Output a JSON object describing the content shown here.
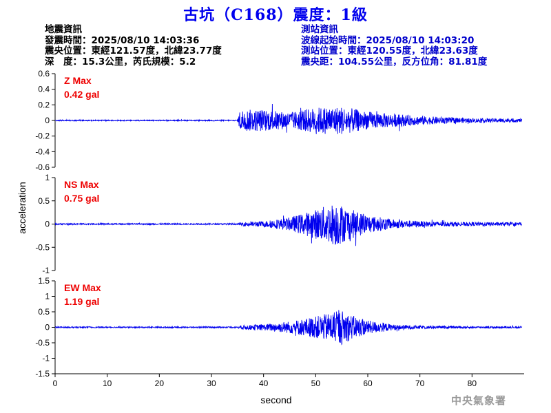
{
  "title": "古坑（C168）震度：1級",
  "quake_info": {
    "heading": "地震資訊",
    "origin_time": "發震時間：2025/08/10 14:03:36",
    "epicenter": "震央位置：東經121.57度，北緯23.77度",
    "depth_magnitude": "深　度：15.3公里，芮氏規模：5.2"
  },
  "station_info": {
    "heading": "測站資訊",
    "wave_onset": "波線起始時間：2025/08/10 14:03:20",
    "station_location": "測站位置：東經120.55度，北緯23.63度",
    "distance_azimuth": "震央距：104.55公里，反方位角：81.81度"
  },
  "logo_text": "中央氣象署",
  "colors": {
    "trace": "#0000ee",
    "max_label": "#ee0000",
    "title": "#0000ee",
    "station_info": "#0000cc"
  },
  "chart_data": {
    "type": "line",
    "xlabel": "second",
    "ylabel": "acceleration",
    "xlim": [
      0,
      90
    ],
    "x_ticks": [
      0,
      10,
      20,
      30,
      40,
      50,
      60,
      70,
      80
    ],
    "panels": [
      {
        "component": "Z",
        "max_label": "Z Max",
        "max_value": "0.42 gal",
        "ylim": [
          -0.6,
          0.6
        ],
        "y_ticks": [
          0.6,
          0.4,
          0.2,
          0,
          -0.2,
          -0.4,
          -0.6
        ],
        "y_tick_labels": [
          "0.6",
          "0.4",
          "0.2",
          "0",
          "-0.2",
          "-0.4",
          "-0.6"
        ],
        "envelope": [
          [
            0,
            0.01
          ],
          [
            35,
            0.01
          ],
          [
            35.5,
            0.2
          ],
          [
            40,
            0.2
          ],
          [
            45,
            0.15
          ],
          [
            50,
            0.24
          ],
          [
            55,
            0.26
          ],
          [
            60,
            0.16
          ],
          [
            65,
            0.12
          ],
          [
            70,
            0.08
          ],
          [
            80,
            0.04
          ],
          [
            90,
            0.03
          ]
        ]
      },
      {
        "component": "NS",
        "max_label": "NS Max",
        "max_value": "0.75 gal",
        "ylim": [
          -1,
          1
        ],
        "y_ticks": [
          1,
          0.5,
          0,
          -0.5,
          -1
        ],
        "y_tick_labels": [
          "1",
          "0.5",
          "0",
          "-0.5",
          "-1"
        ],
        "envelope": [
          [
            0,
            0.02
          ],
          [
            35,
            0.02
          ],
          [
            36,
            0.06
          ],
          [
            40,
            0.09
          ],
          [
            45,
            0.2
          ],
          [
            50,
            0.45
          ],
          [
            54,
            0.68
          ],
          [
            56,
            0.5
          ],
          [
            60,
            0.28
          ],
          [
            65,
            0.14
          ],
          [
            70,
            0.09
          ],
          [
            80,
            0.06
          ],
          [
            90,
            0.05
          ]
        ]
      },
      {
        "component": "EW",
        "max_label": "EW Max",
        "max_value": "1.19 gal",
        "ylim": [
          -1.5,
          1.5
        ],
        "y_ticks": [
          1.5,
          1,
          0.5,
          0,
          -0.5,
          -1,
          -1.5
        ],
        "y_tick_labels": [
          "1.5",
          "1",
          "0.5",
          "0",
          "-0.5",
          "-1",
          "-1.5"
        ],
        "envelope": [
          [
            0,
            0.03
          ],
          [
            35,
            0.03
          ],
          [
            36,
            0.1
          ],
          [
            40,
            0.14
          ],
          [
            45,
            0.28
          ],
          [
            50,
            0.5
          ],
          [
            55,
            0.8
          ],
          [
            57,
            0.55
          ],
          [
            60,
            0.32
          ],
          [
            65,
            0.13
          ],
          [
            70,
            0.07
          ],
          [
            80,
            0.05
          ],
          [
            90,
            0.04
          ]
        ]
      }
    ]
  }
}
